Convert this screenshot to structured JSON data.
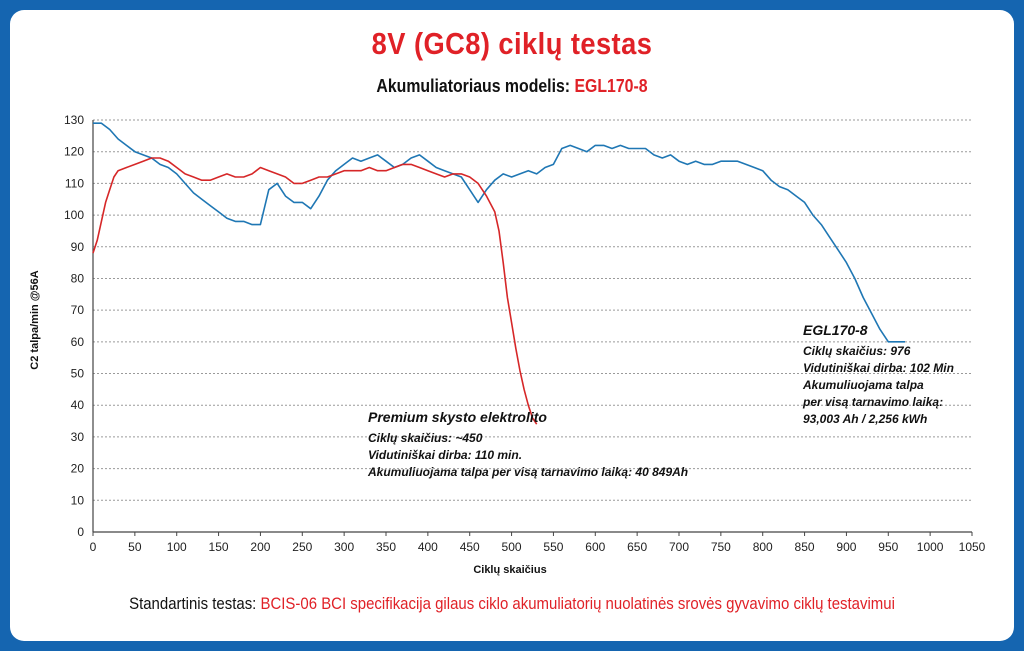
{
  "header": {
    "title": "8V (GC8) ciklų testas",
    "subtitle_label": "Akumuliatoriaus modelis:",
    "subtitle_model": "EGL170-8"
  },
  "footer": {
    "label": "Standartinis testas:",
    "text": "BCIS-06 BCI specifikacija gilaus ciklo akumuliatorių nuolatinės srovės gyvavimo ciklų testavimui"
  },
  "annotations": {
    "egl": {
      "title": "EGL170-8",
      "lines": [
        "Ciklų skaičius: 976",
        "Vidutiniškai dirba: 102 Min",
        "Akumuliuojama talpa",
        "per visą tarnavimo laiką:",
        "93,003 Ah / 2,256 kWh"
      ]
    },
    "premium": {
      "title": "Premium skysto elektrolito",
      "lines": [
        "Ciklų skaičius: ~450",
        "Vidutiniškai dirba: 110 min.",
        "Akumuliuojama talpa per visą tarnavimo laiką: 40 849Ah"
      ]
    }
  },
  "colors": {
    "egl": "#1f77b4",
    "premium": "#d62728",
    "brand": "#1565b0",
    "accent": "#e02127"
  },
  "chart_data": {
    "type": "line",
    "xlabel": "Ciklų skaičius",
    "ylabel": "C2 talpa/min @56A",
    "xlim": [
      0,
      1050
    ],
    "ylim": [
      0,
      130
    ],
    "xticks": [
      0,
      50,
      100,
      150,
      200,
      250,
      300,
      350,
      400,
      450,
      500,
      550,
      600,
      650,
      700,
      750,
      800,
      850,
      900,
      950,
      1000,
      1050
    ],
    "yticks": [
      0,
      10,
      20,
      30,
      40,
      50,
      60,
      70,
      80,
      90,
      100,
      110,
      120,
      130
    ],
    "grid": true,
    "series": [
      {
        "name": "EGL170-8",
        "color": "#1f77b4",
        "x": [
          0,
          10,
          20,
          30,
          40,
          50,
          60,
          70,
          80,
          90,
          100,
          110,
          120,
          130,
          140,
          150,
          160,
          170,
          180,
          190,
          200,
          210,
          220,
          230,
          240,
          250,
          260,
          270,
          280,
          290,
          300,
          310,
          320,
          330,
          340,
          350,
          360,
          370,
          380,
          390,
          400,
          410,
          420,
          430,
          440,
          450,
          460,
          470,
          480,
          490,
          500,
          510,
          520,
          530,
          540,
          550,
          560,
          570,
          580,
          590,
          600,
          610,
          620,
          630,
          640,
          650,
          660,
          670,
          680,
          690,
          700,
          710,
          720,
          730,
          740,
          750,
          760,
          770,
          780,
          790,
          800,
          810,
          820,
          830,
          840,
          850,
          860,
          870,
          880,
          890,
          900,
          910,
          920,
          930,
          940,
          950,
          960,
          970
        ],
        "y": [
          129,
          129,
          127,
          124,
          122,
          120,
          119,
          118,
          116,
          115,
          113,
          110,
          107,
          105,
          103,
          101,
          99,
          98,
          98,
          97,
          97,
          108,
          110,
          106,
          104,
          104,
          102,
          106,
          111,
          114,
          116,
          118,
          117,
          118,
          119,
          117,
          115,
          116,
          118,
          119,
          117,
          115,
          114,
          113,
          112,
          108,
          104,
          108,
          111,
          113,
          112,
          113,
          114,
          113,
          115,
          116,
          121,
          122,
          121,
          120,
          122,
          122,
          121,
          122,
          121,
          121,
          121,
          119,
          118,
          119,
          117,
          116,
          117,
          116,
          116,
          117,
          117,
          117,
          116,
          115,
          114,
          111,
          109,
          108,
          106,
          104,
          100,
          97,
          93,
          89,
          85,
          80,
          74,
          69,
          64,
          60,
          60,
          60
        ]
      },
      {
        "name": "Premium skysto elektrolito",
        "color": "#d62728",
        "x": [
          0,
          5,
          10,
          15,
          20,
          25,
          30,
          40,
          50,
          60,
          70,
          80,
          90,
          100,
          110,
          120,
          130,
          140,
          150,
          160,
          170,
          180,
          190,
          200,
          210,
          220,
          230,
          240,
          250,
          260,
          270,
          280,
          290,
          300,
          310,
          320,
          330,
          340,
          350,
          360,
          370,
          380,
          390,
          400,
          410,
          420,
          430,
          440,
          450,
          460,
          470,
          480,
          485,
          490,
          495,
          500,
          505,
          510,
          515,
          520,
          525,
          530
        ],
        "y": [
          88,
          92,
          98,
          104,
          108,
          112,
          114,
          115,
          116,
          117,
          118,
          118,
          117,
          115,
          113,
          112,
          111,
          111,
          112,
          113,
          112,
          112,
          113,
          115,
          114,
          113,
          112,
          110,
          110,
          111,
          112,
          112,
          113,
          114,
          114,
          114,
          115,
          114,
          114,
          115,
          116,
          116,
          115,
          114,
          113,
          112,
          113,
          113,
          112,
          110,
          106,
          101,
          95,
          85,
          74,
          66,
          58,
          51,
          45,
          40,
          36,
          34
        ]
      }
    ]
  }
}
